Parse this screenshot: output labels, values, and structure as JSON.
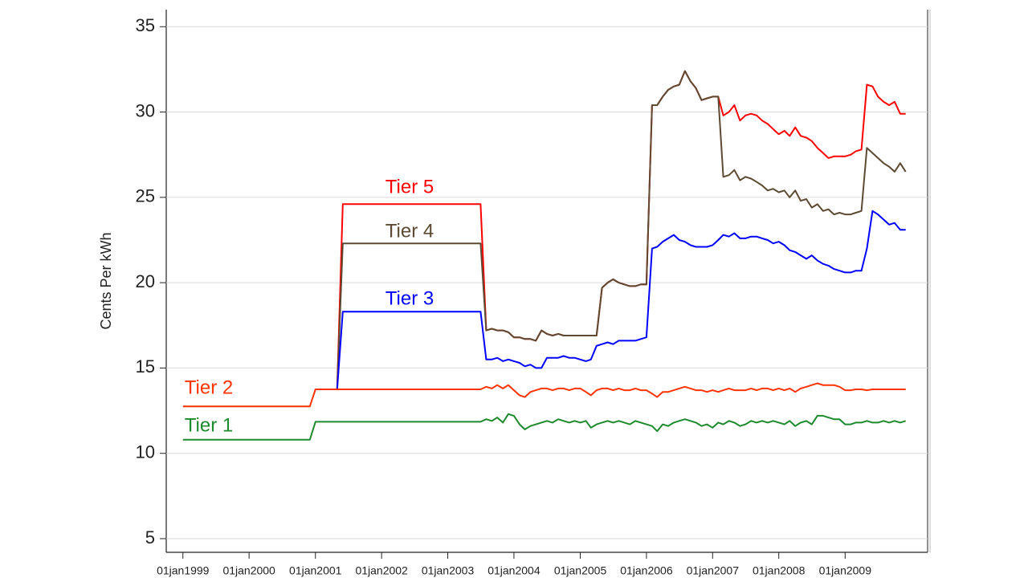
{
  "chart_data": {
    "type": "line",
    "y_label": "Cents Per kWh",
    "x": [
      "1999-01-01",
      "1999-02-01",
      "1999-03-01",
      "1999-04-01",
      "1999-05-01",
      "1999-06-01",
      "1999-07-01",
      "1999-08-01",
      "1999-09-01",
      "1999-10-01",
      "1999-11-01",
      "1999-12-01",
      "2000-01-01",
      "2000-02-01",
      "2000-03-01",
      "2000-04-01",
      "2000-05-01",
      "2000-06-01",
      "2000-07-01",
      "2000-08-01",
      "2000-09-01",
      "2000-10-01",
      "2000-11-01",
      "2000-12-01",
      "2001-01-01",
      "2001-02-01",
      "2001-03-01",
      "2001-04-01",
      "2001-05-01",
      "2001-06-01",
      "2001-07-01",
      "2001-08-01",
      "2001-09-01",
      "2001-10-01",
      "2001-11-01",
      "2001-12-01",
      "2002-01-01",
      "2002-02-01",
      "2002-03-01",
      "2002-04-01",
      "2002-05-01",
      "2002-06-01",
      "2002-07-01",
      "2002-08-01",
      "2002-09-01",
      "2002-10-01",
      "2002-11-01",
      "2002-12-01",
      "2003-01-01",
      "2003-02-01",
      "2003-03-01",
      "2003-04-01",
      "2003-05-01",
      "2003-06-01",
      "2003-07-01",
      "2003-08-01",
      "2003-09-01",
      "2003-10-01",
      "2003-11-01",
      "2003-12-01",
      "2004-01-01",
      "2004-02-01",
      "2004-03-01",
      "2004-04-01",
      "2004-05-01",
      "2004-06-01",
      "2004-07-01",
      "2004-08-01",
      "2004-09-01",
      "2004-10-01",
      "2004-11-01",
      "2004-12-01",
      "2005-01-01",
      "2005-02-01",
      "2005-03-01",
      "2005-04-01",
      "2005-05-01",
      "2005-06-01",
      "2005-07-01",
      "2005-08-01",
      "2005-09-01",
      "2005-10-01",
      "2005-11-01",
      "2005-12-01",
      "2006-01-01",
      "2006-02-01",
      "2006-03-01",
      "2006-04-01",
      "2006-05-01",
      "2006-06-01",
      "2006-07-01",
      "2006-08-01",
      "2006-09-01",
      "2006-10-01",
      "2006-11-01",
      "2006-12-01",
      "2007-01-01",
      "2007-02-01",
      "2007-03-01",
      "2007-04-01",
      "2007-05-01",
      "2007-06-01",
      "2007-07-01",
      "2007-08-01",
      "2007-09-01",
      "2007-10-01",
      "2007-11-01",
      "2007-12-01",
      "2008-01-01",
      "2008-02-01",
      "2008-03-01",
      "2008-04-01",
      "2008-05-01",
      "2008-06-01",
      "2008-07-01",
      "2008-08-01",
      "2008-09-01",
      "2008-10-01",
      "2008-11-01",
      "2008-12-01",
      "2009-01-01",
      "2009-02-01",
      "2009-03-01",
      "2009-04-01",
      "2009-05-01",
      "2009-06-01",
      "2009-07-01",
      "2009-08-01",
      "2009-09-01",
      "2009-10-01",
      "2009-11-01",
      "2009-12-01"
    ],
    "series": [
      {
        "name": "Tier 5",
        "color": "#ff0000",
        "values": [
          null,
          null,
          null,
          null,
          null,
          null,
          null,
          null,
          null,
          null,
          null,
          null,
          null,
          null,
          null,
          null,
          null,
          null,
          null,
          null,
          null,
          null,
          null,
          null,
          null,
          null,
          null,
          null,
          13.75,
          24.6,
          24.6,
          24.6,
          24.6,
          24.6,
          24.6,
          24.6,
          24.6,
          24.6,
          24.6,
          24.6,
          24.6,
          24.6,
          24.6,
          24.6,
          24.6,
          24.6,
          24.6,
          24.6,
          24.6,
          24.6,
          24.6,
          24.6,
          24.6,
          24.6,
          24.6,
          17.2,
          17.3,
          17.2,
          17.2,
          17.1,
          16.8,
          16.8,
          16.7,
          16.7,
          16.6,
          17.2,
          17.0,
          16.9,
          17.0,
          16.9,
          16.9,
          16.9,
          16.9,
          16.9,
          16.9,
          16.9,
          19.7,
          20.0,
          20.2,
          20.0,
          19.9,
          19.8,
          19.8,
          19.9,
          19.9,
          30.4,
          30.4,
          30.9,
          31.3,
          31.5,
          31.6,
          32.4,
          31.8,
          31.4,
          30.7,
          30.8,
          30.9,
          30.9,
          29.8,
          30.0,
          30.4,
          29.5,
          29.8,
          29.9,
          29.8,
          29.5,
          29.3,
          29.0,
          28.7,
          28.9,
          28.6,
          29.1,
          28.6,
          28.5,
          28.3,
          27.9,
          27.6,
          27.3,
          27.4,
          27.4,
          27.4,
          27.5,
          27.7,
          27.8,
          31.6,
          31.5,
          30.9,
          30.6,
          30.4,
          30.6,
          29.9,
          29.9
        ]
      },
      {
        "name": "Tier 4",
        "color": "#5c4a32",
        "values": [
          null,
          null,
          null,
          null,
          null,
          null,
          null,
          null,
          null,
          null,
          null,
          null,
          null,
          null,
          null,
          null,
          null,
          null,
          null,
          null,
          null,
          null,
          null,
          null,
          null,
          null,
          null,
          null,
          13.75,
          22.3,
          22.3,
          22.3,
          22.3,
          22.3,
          22.3,
          22.3,
          22.3,
          22.3,
          22.3,
          22.3,
          22.3,
          22.3,
          22.3,
          22.3,
          22.3,
          22.3,
          22.3,
          22.3,
          22.3,
          22.3,
          22.3,
          22.3,
          22.3,
          22.3,
          22.3,
          17.2,
          17.3,
          17.2,
          17.2,
          17.1,
          16.8,
          16.8,
          16.7,
          16.7,
          16.6,
          17.2,
          17.0,
          16.9,
          17.0,
          16.9,
          16.9,
          16.9,
          16.9,
          16.9,
          16.9,
          16.9,
          19.7,
          20.0,
          20.2,
          20.0,
          19.9,
          19.8,
          19.8,
          19.9,
          19.9,
          30.4,
          30.4,
          30.9,
          31.3,
          31.5,
          31.6,
          32.4,
          31.8,
          31.4,
          30.7,
          30.8,
          30.9,
          30.9,
          26.2,
          26.3,
          26.6,
          26.0,
          26.2,
          26.1,
          25.9,
          25.7,
          25.4,
          25.5,
          25.3,
          25.4,
          25.0,
          25.4,
          24.8,
          24.9,
          24.4,
          24.6,
          24.2,
          24.3,
          24.0,
          24.1,
          24.0,
          24.0,
          24.1,
          24.2,
          27.9,
          27.6,
          27.3,
          27.0,
          26.8,
          26.5,
          27.0,
          26.5
        ]
      },
      {
        "name": "Tier 3",
        "color": "#0000ff",
        "values": [
          null,
          null,
          null,
          null,
          null,
          null,
          null,
          null,
          null,
          null,
          null,
          null,
          null,
          null,
          null,
          null,
          null,
          null,
          null,
          null,
          null,
          null,
          null,
          null,
          null,
          null,
          null,
          null,
          13.75,
          18.3,
          18.3,
          18.3,
          18.3,
          18.3,
          18.3,
          18.3,
          18.3,
          18.3,
          18.3,
          18.3,
          18.3,
          18.3,
          18.3,
          18.3,
          18.3,
          18.3,
          18.3,
          18.3,
          18.3,
          18.3,
          18.3,
          18.3,
          18.3,
          18.3,
          18.3,
          15.5,
          15.5,
          15.6,
          15.4,
          15.5,
          15.4,
          15.3,
          15.1,
          15.2,
          15.0,
          15.0,
          15.6,
          15.6,
          15.6,
          15.7,
          15.6,
          15.6,
          15.5,
          15.4,
          15.5,
          16.3,
          16.4,
          16.5,
          16.4,
          16.6,
          16.6,
          16.6,
          16.6,
          16.7,
          16.8,
          22.0,
          22.1,
          22.4,
          22.6,
          22.8,
          22.5,
          22.4,
          22.2,
          22.1,
          22.1,
          22.1,
          22.2,
          22.5,
          22.8,
          22.7,
          22.9,
          22.6,
          22.6,
          22.7,
          22.7,
          22.6,
          22.5,
          22.3,
          22.4,
          22.2,
          21.9,
          21.8,
          21.6,
          21.4,
          21.6,
          21.3,
          21.1,
          21.0,
          20.8,
          20.7,
          20.6,
          20.6,
          20.7,
          20.7,
          22.0,
          24.2,
          24.0,
          23.7,
          23.4,
          23.5,
          23.1,
          23.1
        ]
      },
      {
        "name": "Tier 2",
        "color": "#ff3300",
        "values": [
          12.75,
          12.75,
          12.75,
          12.75,
          12.75,
          12.75,
          12.75,
          12.75,
          12.75,
          12.75,
          12.75,
          12.75,
          12.75,
          12.75,
          12.75,
          12.75,
          12.75,
          12.75,
          12.75,
          12.75,
          12.75,
          12.75,
          12.75,
          12.75,
          13.75,
          13.75,
          13.75,
          13.75,
          13.75,
          13.75,
          13.75,
          13.75,
          13.75,
          13.75,
          13.75,
          13.75,
          13.75,
          13.75,
          13.75,
          13.75,
          13.75,
          13.75,
          13.75,
          13.75,
          13.75,
          13.75,
          13.75,
          13.75,
          13.75,
          13.75,
          13.75,
          13.75,
          13.75,
          13.75,
          13.75,
          13.9,
          13.8,
          14.0,
          13.8,
          14.0,
          13.7,
          13.4,
          13.3,
          13.6,
          13.7,
          13.8,
          13.8,
          13.7,
          13.8,
          13.8,
          13.7,
          13.8,
          13.8,
          13.6,
          13.4,
          13.7,
          13.8,
          13.8,
          13.7,
          13.8,
          13.7,
          13.7,
          13.8,
          13.7,
          13.7,
          13.5,
          13.3,
          13.6,
          13.6,
          13.7,
          13.8,
          13.9,
          13.8,
          13.7,
          13.7,
          13.6,
          13.7,
          13.6,
          13.7,
          13.8,
          13.7,
          13.7,
          13.7,
          13.8,
          13.7,
          13.8,
          13.8,
          13.7,
          13.8,
          13.7,
          13.8,
          13.6,
          13.8,
          13.9,
          14.0,
          14.1,
          14.0,
          14.0,
          14.0,
          13.9,
          13.7,
          13.7,
          13.75,
          13.75,
          13.7,
          13.75,
          13.75,
          13.75,
          13.75,
          13.75,
          13.75,
          13.75
        ]
      },
      {
        "name": "Tier 1",
        "color": "#1e8a2e",
        "values": [
          10.8,
          10.8,
          10.8,
          10.8,
          10.8,
          10.8,
          10.8,
          10.8,
          10.8,
          10.8,
          10.8,
          10.8,
          10.8,
          10.8,
          10.8,
          10.8,
          10.8,
          10.8,
          10.8,
          10.8,
          10.8,
          10.8,
          10.8,
          10.8,
          11.85,
          11.85,
          11.85,
          11.85,
          11.85,
          11.85,
          11.85,
          11.85,
          11.85,
          11.85,
          11.85,
          11.85,
          11.85,
          11.85,
          11.85,
          11.85,
          11.85,
          11.85,
          11.85,
          11.85,
          11.85,
          11.85,
          11.85,
          11.85,
          11.85,
          11.85,
          11.85,
          11.85,
          11.85,
          11.85,
          11.85,
          12.0,
          11.9,
          12.1,
          11.8,
          12.3,
          12.2,
          11.7,
          11.4,
          11.6,
          11.7,
          11.8,
          11.9,
          11.8,
          12.0,
          11.9,
          11.8,
          11.9,
          11.8,
          11.9,
          11.5,
          11.7,
          11.8,
          11.9,
          11.8,
          11.9,
          11.8,
          11.7,
          11.9,
          11.8,
          11.7,
          11.6,
          11.3,
          11.7,
          11.6,
          11.8,
          11.9,
          12.0,
          11.9,
          11.8,
          11.6,
          11.7,
          11.5,
          11.8,
          11.7,
          11.9,
          11.8,
          11.6,
          11.7,
          11.9,
          11.8,
          11.9,
          11.8,
          11.9,
          11.8,
          11.7,
          11.9,
          11.6,
          11.8,
          11.9,
          11.7,
          12.2,
          12.2,
          12.1,
          12.0,
          12.0,
          11.7,
          11.7,
          11.8,
          11.8,
          11.9,
          11.8,
          11.8,
          11.9,
          11.8,
          11.9,
          11.8,
          11.9
        ]
      }
    ],
    "xlim": [
      "1998-10-01",
      "2010-04-01"
    ],
    "xticks": [
      {
        "value": "1999-01-01",
        "label": "01jan1999"
      },
      {
        "value": "2000-01-01",
        "label": "01jan2000"
      },
      {
        "value": "2001-01-01",
        "label": "01jan2001"
      },
      {
        "value": "2002-01-01",
        "label": "01jan2002"
      },
      {
        "value": "2003-01-01",
        "label": "01jan2003"
      },
      {
        "value": "2004-01-01",
        "label": "01jan2004"
      },
      {
        "value": "2005-01-01",
        "label": "01jan2005"
      },
      {
        "value": "2006-01-01",
        "label": "01jan2006"
      },
      {
        "value": "2007-01-01",
        "label": "01jan2007"
      },
      {
        "value": "2008-01-01",
        "label": "01jan2008"
      },
      {
        "value": "2009-01-01",
        "label": "01jan2009"
      }
    ],
    "ylim": [
      4.2,
      36
    ],
    "yticks": [
      5,
      10,
      15,
      20,
      25,
      30,
      35
    ],
    "grid": true
  }
}
